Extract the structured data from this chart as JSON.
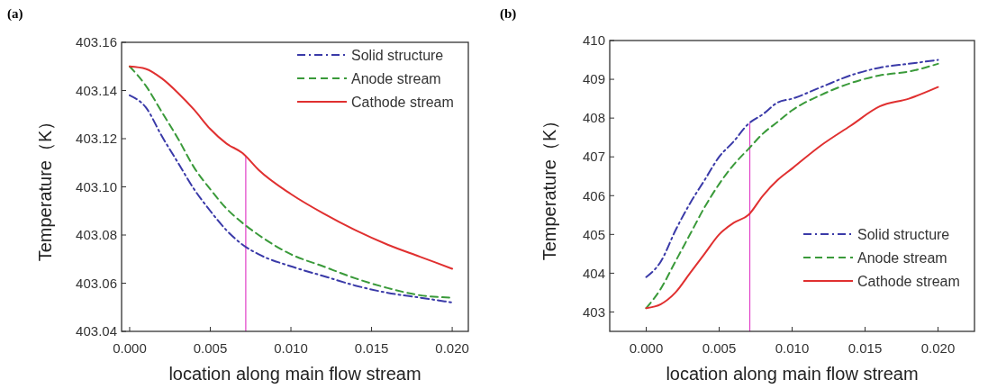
{
  "chart_data": [
    {
      "type": "line",
      "title": "(a)",
      "xlabel": "location along main flow stream",
      "ylabel": "Temperature（K）",
      "xlim": [
        -0.0005,
        0.021
      ],
      "xticks": [
        {
          "value": 0,
          "label": "0.000"
        },
        {
          "value": 0.005,
          "label": "0.005"
        },
        {
          "value": 0.01,
          "label": "0.010"
        },
        {
          "value": 0.015,
          "label": "0.015"
        },
        {
          "value": 0.02,
          "label": "0.020"
        }
      ],
      "ylim": [
        403.04,
        403.16
      ],
      "yticks": [
        {
          "value": 403.04,
          "label": "403.04"
        },
        {
          "value": 403.06,
          "label": "403.06"
        },
        {
          "value": 403.08,
          "label": "403.08"
        },
        {
          "value": 403.1,
          "label": "403.10"
        },
        {
          "value": 403.12,
          "label": "403.12"
        },
        {
          "value": 403.14,
          "label": "403.14"
        },
        {
          "value": 403.16,
          "label": "403.16"
        }
      ],
      "grid": false,
      "legend": "top right",
      "marker": "none",
      "x": [
        0,
        0.001,
        0.002,
        0.003,
        0.004,
        0.005,
        0.006,
        0.007,
        0.008,
        0.01,
        0.012,
        0.014,
        0.016,
        0.018,
        0.02
      ],
      "ref_lines": [
        {
          "axis": "x",
          "value": 0.0072,
          "color": "#e040c8"
        }
      ],
      "series": [
        {
          "name": "Solid structure",
          "color": "#3a3aa8",
          "line_style": "dashdot",
          "values": [
            403.138,
            403.133,
            403.121,
            403.11,
            403.099,
            403.09,
            403.082,
            403.076,
            403.072,
            403.067,
            403.063,
            403.059,
            403.056,
            403.054,
            403.052
          ]
        },
        {
          "name": "Anode stream",
          "color": "#3a9a3a",
          "line_style": "dashed",
          "values": [
            403.15,
            403.142,
            403.131,
            403.12,
            403.108,
            403.099,
            403.091,
            403.085,
            403.08,
            403.072,
            403.067,
            403.062,
            403.058,
            403.055,
            403.054
          ]
        },
        {
          "name": "Cathode stream",
          "color": "#e03030",
          "line_style": "solid",
          "values": [
            403.15,
            403.149,
            403.145,
            403.139,
            403.132,
            403.124,
            403.118,
            403.114,
            403.107,
            403.097,
            403.089,
            403.082,
            403.076,
            403.071,
            403.066
          ]
        }
      ]
    },
    {
      "type": "line",
      "title": "(b)",
      "xlabel": "location along main flow stream",
      "ylabel": "Temperature（K）",
      "xlim": [
        -0.0025,
        0.0225
      ],
      "xticks": [
        {
          "value": 0,
          "label": "0.000"
        },
        {
          "value": 0.005,
          "label": "0.005"
        },
        {
          "value": 0.01,
          "label": "0.010"
        },
        {
          "value": 0.015,
          "label": "0.015"
        },
        {
          "value": 0.02,
          "label": "0.020"
        }
      ],
      "ylim": [
        402.5,
        410
      ],
      "yticks": [
        403,
        404,
        405,
        406,
        407,
        408,
        409,
        410
      ],
      "grid": false,
      "legend": "bottom right",
      "marker": "none",
      "x": [
        0,
        0.001,
        0.002,
        0.003,
        0.004,
        0.005,
        0.006,
        0.007,
        0.008,
        0.009,
        0.01,
        0.012,
        0.014,
        0.016,
        0.018,
        0.02
      ],
      "ref_lines": [
        {
          "axis": "x",
          "value": 0.0071,
          "color": "#e040c8"
        }
      ],
      "series": [
        {
          "name": "Solid structure",
          "color": "#3a3aa8",
          "line_style": "dashdot",
          "values": [
            403.9,
            404.3,
            405.1,
            405.8,
            406.4,
            407.0,
            407.4,
            407.85,
            408.1,
            408.4,
            408.5,
            408.8,
            409.1,
            409.3,
            409.4,
            409.5
          ]
        },
        {
          "name": "Anode stream",
          "color": "#3a9a3a",
          "line_style": "dashed",
          "values": [
            403.1,
            403.6,
            404.3,
            405.0,
            405.7,
            406.3,
            406.8,
            407.2,
            407.6,
            407.9,
            408.2,
            408.6,
            408.9,
            409.1,
            409.2,
            409.4
          ]
        },
        {
          "name": "Cathode stream",
          "color": "#e03030",
          "line_style": "solid",
          "values": [
            403.1,
            403.2,
            403.5,
            404.0,
            404.5,
            405.0,
            405.3,
            405.5,
            406.0,
            406.4,
            406.7,
            407.3,
            407.8,
            408.3,
            408.5,
            408.8
          ]
        }
      ]
    }
  ]
}
